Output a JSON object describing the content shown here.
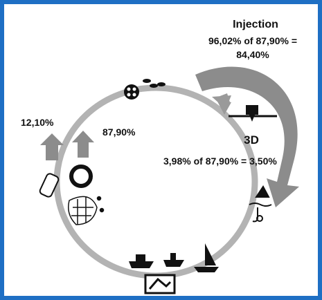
{
  "injection": {
    "title": "Injection",
    "formula": "96,02% of 87,90% =",
    "result": "84,40%"
  },
  "loss": {
    "label": "12,10%"
  },
  "recycled": {
    "label": "87,90%"
  },
  "other_use": {
    "label": "3,98% of 87,90% = 3,50%"
  },
  "icons": {
    "printer_label": "3D"
  }
}
